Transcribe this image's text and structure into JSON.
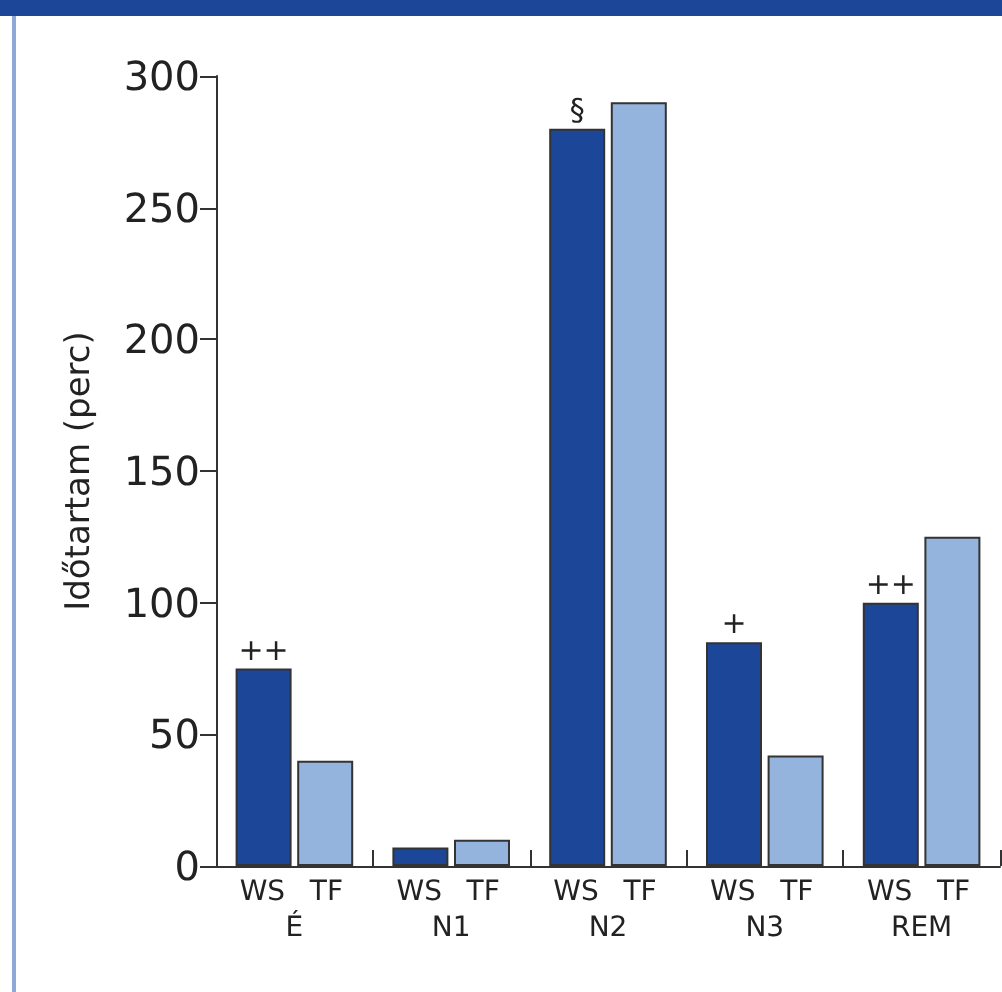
{
  "chart_data": {
    "type": "bar",
    "ylabel": "Időtartam (perc)",
    "categories": [
      "É",
      "N1",
      "N2",
      "N3",
      "REM"
    ],
    "series": [
      {
        "name": "WS",
        "color": "#1c4698",
        "values": [
          75,
          7,
          280,
          85,
          100
        ]
      },
      {
        "name": "TF",
        "color": "#95b4dd",
        "values": [
          40,
          10,
          290,
          42,
          125
        ]
      }
    ],
    "ylim": [
      0,
      300
    ],
    "yticks": [
      0,
      50,
      100,
      150,
      200,
      250,
      300
    ],
    "grid": false,
    "legend": false,
    "annotations": [
      {
        "text": "++",
        "x": "É",
        "y": 75
      },
      {
        "text": "§",
        "x": "N2",
        "y": 280
      },
      {
        "text": "+",
        "x": "N3",
        "y": 85
      },
      {
        "text": "++",
        "x": "REM",
        "y": 100
      }
    ]
  }
}
